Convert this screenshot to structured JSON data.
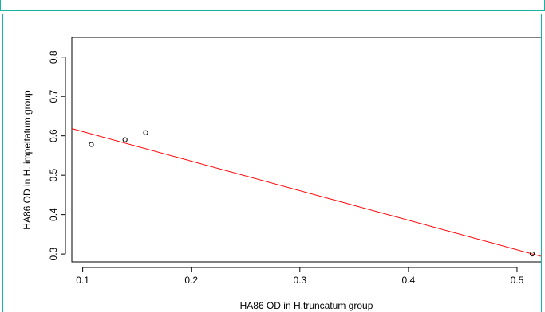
{
  "chart_data": {
    "type": "scatter",
    "title": "",
    "xlabel": "HA86 OD in H.truncatum group",
    "ylabel": "HA86 OD in H. impeltatum group",
    "xlim": [
      0.09,
      0.525
    ],
    "ylim": [
      0.28,
      0.85
    ],
    "xticks": [
      0.1,
      0.2,
      0.3,
      0.4,
      0.5
    ],
    "yticks": [
      0.3,
      0.4,
      0.5,
      0.6,
      0.7,
      0.8
    ],
    "series": [
      {
        "points": [
          {
            "x": 0.108,
            "y": 0.578
          },
          {
            "x": 0.139,
            "y": 0.59
          },
          {
            "x": 0.158,
            "y": 0.608
          },
          {
            "x": 0.514,
            "y": 0.3
          }
        ]
      }
    ],
    "fit_line": {
      "color": "#ff0000",
      "x_start": 0.085,
      "y_start": 0.622,
      "x_end": 0.525,
      "y_end": 0.292
    },
    "grid": false,
    "legend": "none"
  }
}
